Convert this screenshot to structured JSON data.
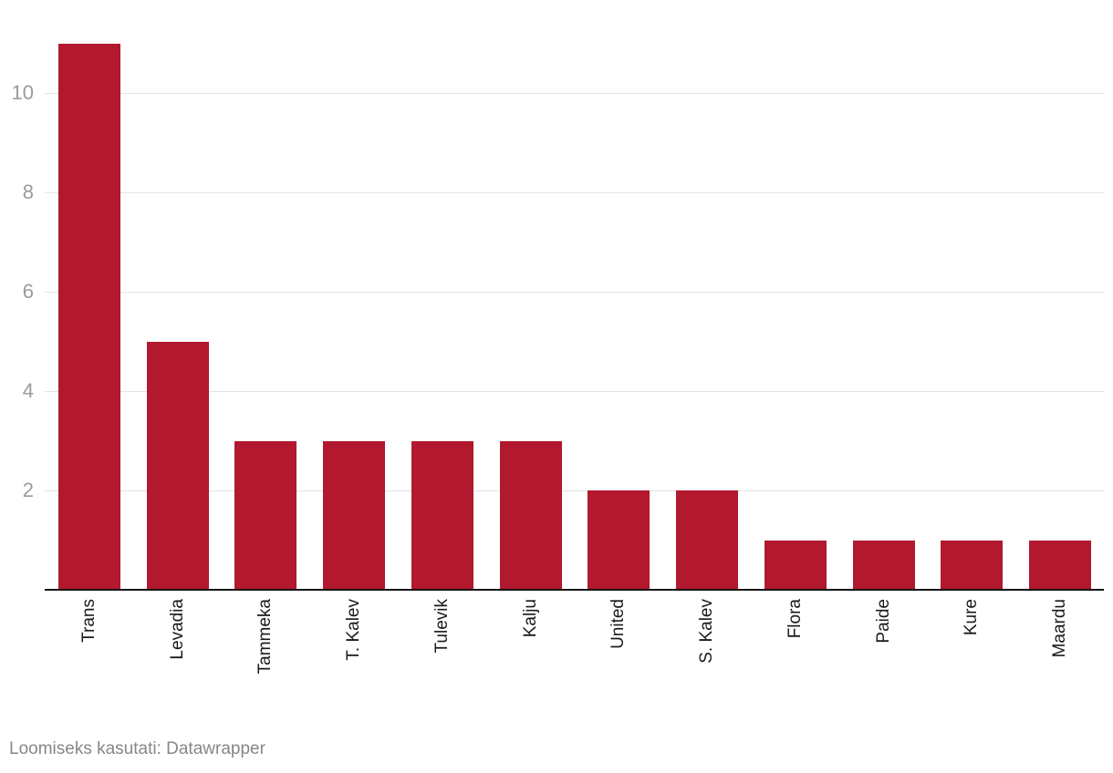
{
  "chart_data": {
    "type": "bar",
    "categories": [
      "Trans",
      "Levadia",
      "Tammeka",
      "T. Kalev",
      "Tulevik",
      "Kalju",
      "United",
      "S. Kalev",
      "Flora",
      "Paide",
      "Kure",
      "Maardu"
    ],
    "values": [
      11,
      5,
      3,
      3,
      3,
      3,
      2,
      2,
      1,
      1,
      1,
      1
    ],
    "title": "",
    "xlabel": "",
    "ylabel": "",
    "ylim": [
      0,
      11
    ],
    "yticks": [
      2,
      4,
      6,
      8,
      10
    ],
    "grid": true,
    "legend": false,
    "bar_color": "#b2182e",
    "grid_color": "#e3e3e3",
    "axis_line_color": "#141414",
    "tick_label_color": "#9b9b9b",
    "category_label_color": "#1a1a1a"
  },
  "footer": {
    "attribution": "Loomiseks kasutati: Datawrapper"
  }
}
